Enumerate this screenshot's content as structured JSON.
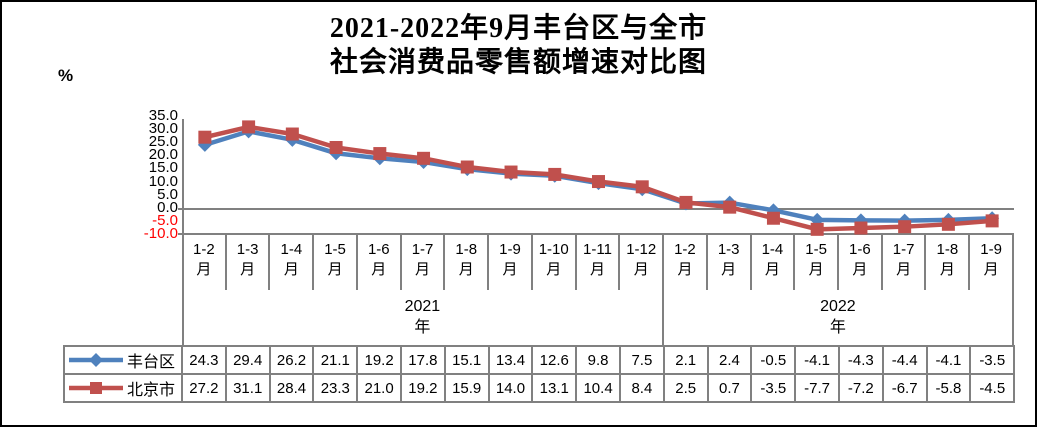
{
  "title": {
    "line1": "2021-2022年9月丰台区与全市",
    "line2": "社会消费品零售额增速对比图"
  },
  "y_axis": {
    "unit_label": "%",
    "ticks": [
      35,
      30,
      25,
      20,
      15,
      10,
      5,
      0,
      -5,
      -10
    ],
    "positive_tick_color": "#000000",
    "negative_tick_color": "#FF0000"
  },
  "x_axis": {
    "groups": [
      {
        "year": "2021",
        "year_suffix": "年",
        "months": [
          "1-2月",
          "1-3月",
          "1-4月",
          "1-5月",
          "1-6月",
          "1-7月",
          "1-8月",
          "1-9月",
          "1-10月",
          "1-11月",
          "1-12月"
        ]
      },
      {
        "year": "2022",
        "year_suffix": "年",
        "months": [
          "1-2月",
          "1-3月",
          "1-4月",
          "1-5月",
          "1-6月",
          "1-7月",
          "1-8月",
          "1-9月"
        ]
      }
    ]
  },
  "chart_data": {
    "type": "line",
    "title": "2021-2022年9月丰台区与全市社会消费品零售额增速对比图",
    "categories": [
      "2021年1-2月",
      "2021年1-3月",
      "2021年1-4月",
      "2021年1-5月",
      "2021年1-6月",
      "2021年1-7月",
      "2021年1-8月",
      "2021年1-9月",
      "2021年1-10月",
      "2021年1-11月",
      "2021年1-12月",
      "2022年1-2月",
      "2022年1-3月",
      "2022年1-4月",
      "2022年1-5月",
      "2022年1-6月",
      "2022年1-7月",
      "2022年1-8月",
      "2022年1-9月"
    ],
    "series": [
      {
        "name": "丰台区",
        "color": "#4F81BD",
        "marker": "diamond",
        "values": [
          24.3,
          29.4,
          26.2,
          21.1,
          19.2,
          17.8,
          15.1,
          13.4,
          12.6,
          9.8,
          7.5,
          2.1,
          2.4,
          -0.5,
          -4.1,
          -4.3,
          -4.4,
          -4.1,
          -3.5
        ]
      },
      {
        "name": "北京市",
        "color": "#C0504D",
        "marker": "square",
        "values": [
          27.2,
          31.1,
          28.4,
          23.3,
          21.0,
          19.2,
          15.9,
          14.0,
          13.1,
          10.4,
          8.4,
          2.5,
          0.7,
          -3.5,
          -7.7,
          -7.2,
          -6.7,
          -5.8,
          -4.5
        ]
      }
    ],
    "ylabel": "%",
    "ylim": [
      -10,
      35
    ],
    "ytick_step": 5,
    "grid": false,
    "zero_line": true,
    "legend_position": "table-bottom-left"
  },
  "colors": {
    "axis_line": "#808080",
    "table_border": "#808080",
    "frame_border": "#000000",
    "background": "#FFFFFF"
  }
}
